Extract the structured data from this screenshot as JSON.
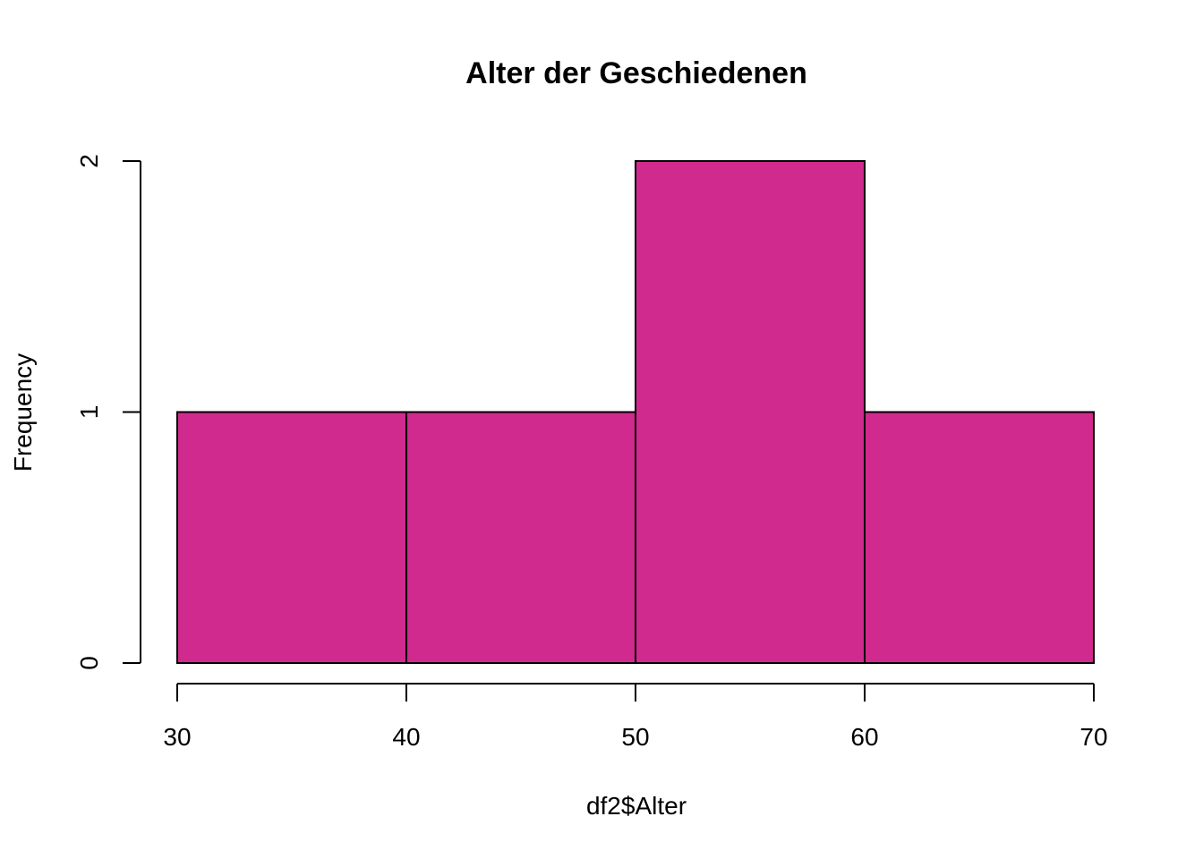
{
  "chart_data": {
    "type": "histogram",
    "title": "Alter der Geschiedenen",
    "xlabel": "df2$Alter",
    "ylabel": "Frequency",
    "bins": [
      {
        "from": 30,
        "to": 40,
        "count": 1
      },
      {
        "from": 40,
        "to": 50,
        "count": 1
      },
      {
        "from": 50,
        "to": 60,
        "count": 2
      },
      {
        "from": 60,
        "to": 70,
        "count": 1
      }
    ],
    "xlim": [
      30,
      70
    ],
    "ylim": [
      0,
      2
    ],
    "x_ticks": [
      "30",
      "40",
      "50",
      "60",
      "70"
    ],
    "y_ticks": [
      "0",
      "1",
      "2"
    ],
    "bar_color": "#D02A8E",
    "grid": false
  }
}
